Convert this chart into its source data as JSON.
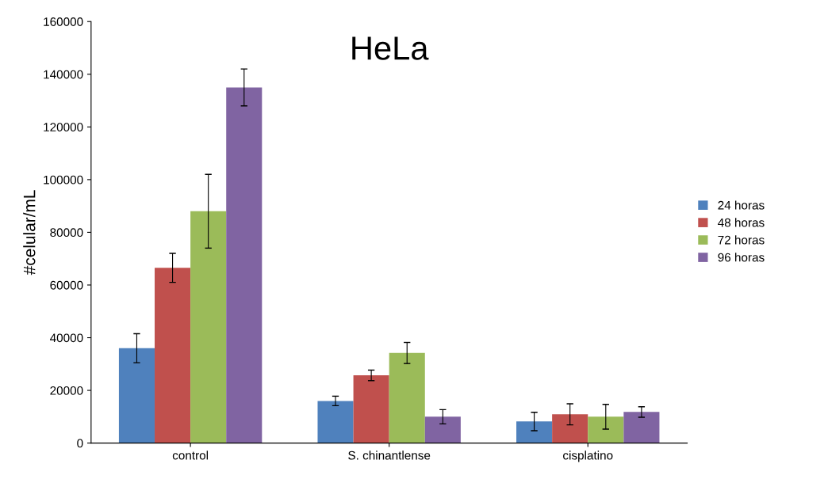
{
  "chart_data": {
    "type": "bar",
    "title": "HeLa",
    "ylabel": "#celular/mL",
    "categories": [
      "control",
      "S. chinantlense",
      "cisplatino"
    ],
    "series": [
      {
        "name": "24 horas",
        "color": "#4f81bd",
        "values": [
          36000,
          16000,
          8200
        ],
        "errors": [
          5500,
          1800,
          3500
        ]
      },
      {
        "name": "48 horas",
        "color": "#c0504d",
        "values": [
          66500,
          25700,
          10900
        ],
        "errors": [
          5500,
          2000,
          4000
        ]
      },
      {
        "name": "72 horas",
        "color": "#9bbb59",
        "values": [
          88000,
          34200,
          10000
        ],
        "errors": [
          14000,
          4000,
          4700
        ]
      },
      {
        "name": "96 horas",
        "color": "#8064a2",
        "values": [
          135000,
          10000,
          11800
        ],
        "errors": [
          7000,
          2700,
          2000
        ]
      }
    ],
    "ylim": [
      0,
      160000
    ],
    "yticks": [
      0,
      20000,
      40000,
      60000,
      80000,
      100000,
      120000,
      140000,
      160000
    ],
    "grid": false,
    "legend": "right"
  }
}
